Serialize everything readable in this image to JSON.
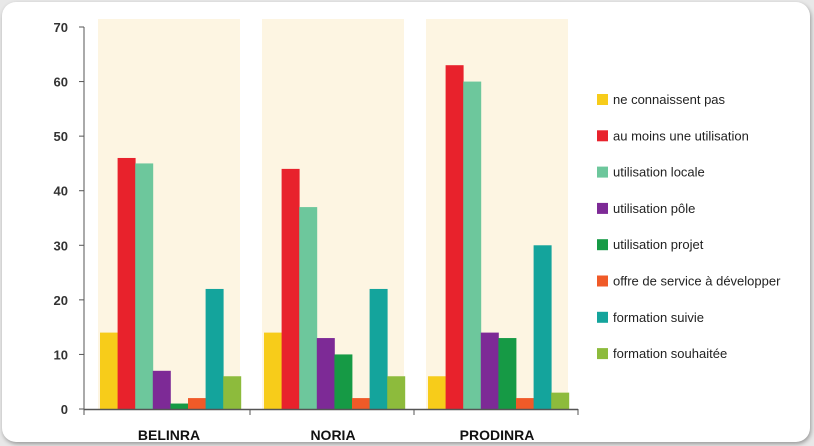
{
  "chart_data": {
    "type": "bar",
    "title": "",
    "xlabel": "",
    "ylabel": "",
    "ylim": [
      0,
      70
    ],
    "yticks": [
      0,
      10,
      20,
      30,
      40,
      50,
      60,
      70
    ],
    "grid": false,
    "legend_position": "right",
    "categories": [
      "BELINRA",
      "NORIA",
      "PRODINRA"
    ],
    "series": [
      {
        "name": "ne connaissent pas",
        "color": "#f7cc1a",
        "values": [
          14,
          14,
          6
        ]
      },
      {
        "name": "au moins une utilisation",
        "color": "#e8222c",
        "values": [
          46,
          44,
          63
        ]
      },
      {
        "name": "utilisation locale",
        "color": "#6dc79c",
        "values": [
          45,
          37,
          60
        ]
      },
      {
        "name": "utilisation pôle",
        "color": "#7d2a96",
        "values": [
          7,
          13,
          14
        ]
      },
      {
        "name": "utilisation projet",
        "color": "#169a45",
        "values": [
          1,
          10,
          13
        ]
      },
      {
        "name": "offre de service à développer",
        "color": "#f05a28",
        "values": [
          2,
          2,
          2
        ]
      },
      {
        "name": "formation suivie",
        "color": "#14a49c",
        "values": [
          22,
          22,
          30
        ]
      },
      {
        "name": "formation souhaitée",
        "color": "#8dbb3c",
        "values": [
          6,
          6,
          3
        ]
      }
    ],
    "group_background": "#fdf5e2"
  }
}
